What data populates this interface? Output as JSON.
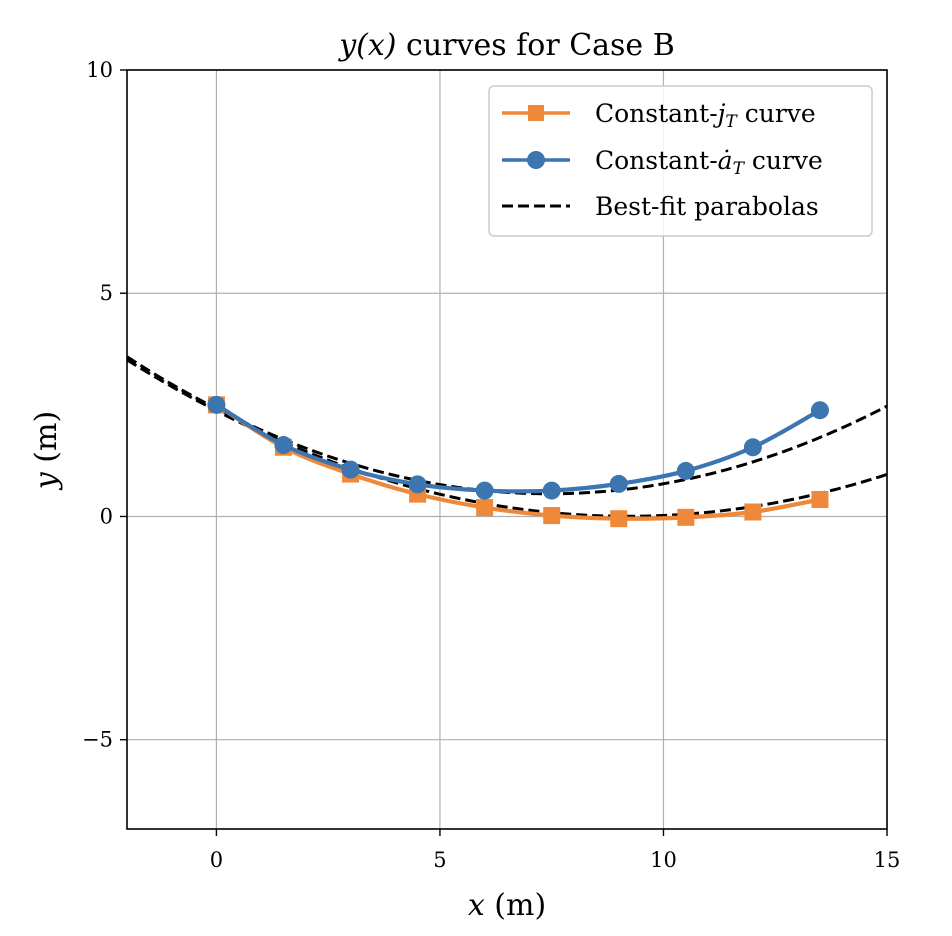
{
  "chart_data": {
    "type": "line",
    "title": "y(x) curves for Case B",
    "xlabel": "x (m)",
    "ylabel": "y (m)",
    "xlim": [
      -2,
      15
    ],
    "ylim": [
      -7,
      10
    ],
    "xticks": [
      0,
      5,
      10,
      15
    ],
    "yticks": [
      -5,
      0,
      5,
      10
    ],
    "x_tick_labels": [
      "0",
      "5",
      "10",
      "15"
    ],
    "y_tick_labels": [
      "−5",
      "0",
      "5",
      "10"
    ],
    "grid": true,
    "legend_position": "upper right",
    "series": [
      {
        "name": "Constant-jT curve",
        "color": "#f0883a",
        "marker": "square",
        "x": [
          0,
          1.5,
          3,
          4.5,
          6,
          7.5,
          9,
          10.5,
          12,
          13.5
        ],
        "y": [
          2.5,
          1.55,
          0.95,
          0.5,
          0.2,
          0.02,
          -0.05,
          -0.02,
          0.1,
          0.38
        ]
      },
      {
        "name": "Constant-ȧT curve",
        "color": "#3c75af",
        "marker": "circle",
        "x": [
          0,
          1.5,
          3,
          4.5,
          6,
          7.5,
          9,
          10.5,
          12,
          13.5
        ],
        "y": [
          2.5,
          1.6,
          1.05,
          0.72,
          0.58,
          0.58,
          0.73,
          1.02,
          1.55,
          2.38
        ]
      },
      {
        "name": "Best-fit parabolas",
        "color": "#000000",
        "style": "dashed",
        "fits": [
          {
            "coefficients": [
              0.0279,
              -0.5137,
              2.369
            ]
          },
          {
            "coefficients": [
              0.0344,
              -0.5123,
              2.416
            ]
          }
        ]
      }
    ]
  },
  "legend": {
    "items": [
      {
        "prefix": "Constant-",
        "var": "j",
        "sub": "T",
        "suffix": " curve"
      },
      {
        "prefix": "Constant-",
        "var": "ȧ",
        "sub": "T",
        "suffix": " curve"
      },
      {
        "text": "Best-fit parabolas"
      }
    ]
  },
  "labels": {
    "title_var": "y(x)",
    "title_rest": " curves for Case B",
    "xlabel_var": "x",
    "xlabel_unit": " (m)",
    "ylabel_var": "y",
    "ylabel_unit": " (m)"
  }
}
